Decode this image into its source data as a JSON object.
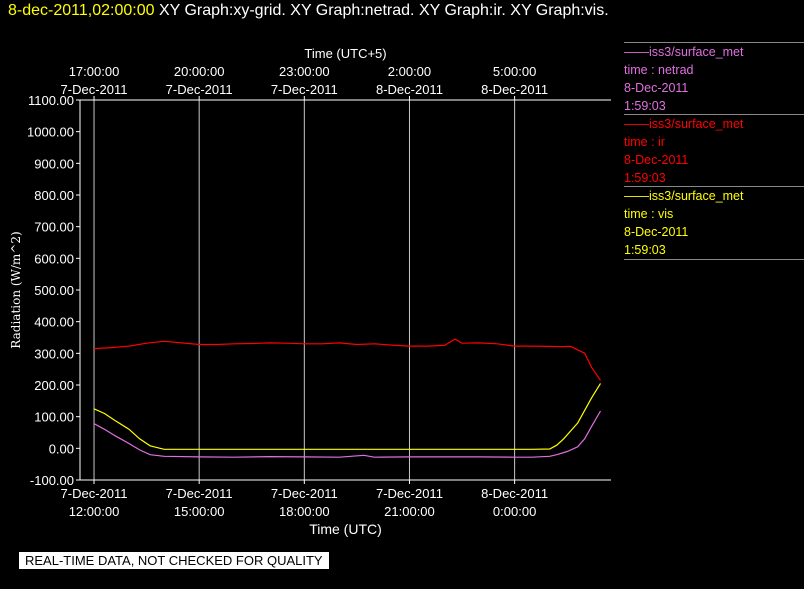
{
  "header": {
    "timestamp": "8-dec-2011,02:00:00",
    "titles": [
      "XY Graph:xy-grid.",
      "XY Graph:netrad.",
      "XY Graph:ir.",
      "XY Graph:vis."
    ]
  },
  "colors": {
    "netrad": "#e070e0",
    "ir": "#ff0000",
    "vis": "#ffff00",
    "grid": "#c8c8c8",
    "axis": "#ffffff"
  },
  "legend": [
    {
      "key": "netrad",
      "name": "——iss3/surface_met",
      "line2": "time : netrad",
      "line3": "8-Dec-2011",
      "line4": "1:59:03"
    },
    {
      "key": "ir",
      "name": "——iss3/surface_met",
      "line2": "time : ir",
      "line3": "8-Dec-2011",
      "line4": "1:59:03"
    },
    {
      "key": "vis",
      "name": "——iss3/surface_met",
      "line2": "time : vis",
      "line3": "8-Dec-2011",
      "line4": "1:59:03"
    }
  ],
  "banner": "REAL-TIME DATA, NOT CHECKED FOR QUALITY",
  "chart_data": {
    "type": "line",
    "ylabel": "Radiation (W/m^2)",
    "xlabel": "Time (UTC)",
    "xlabel_top": "Time (UTC+5)",
    "ylim": [
      -100,
      1100
    ],
    "yticks": [
      "-100.00",
      "0.00",
      "100.00",
      "200.00",
      "300.00",
      "400.00",
      "500.00",
      "600.00",
      "700.00",
      "800.00",
      "900.00",
      "1000.00",
      "1100.00"
    ],
    "xlim": [
      10.6,
      25.75
    ],
    "xticks_bottom": [
      {
        "x": 11,
        "l1": "7-Dec-2011",
        "l2": "12:00:00"
      },
      {
        "x": 14,
        "l1": "7-Dec-2011",
        "l2": "15:00:00"
      },
      {
        "x": 17,
        "l1": "7-Dec-2011",
        "l2": "18:00:00"
      },
      {
        "x": 20,
        "l1": "7-Dec-2011",
        "l2": "21:00:00"
      },
      {
        "x": 23,
        "l1": "8-Dec-2011",
        "l2": "0:00:00"
      }
    ],
    "xticks_top": [
      {
        "x": 11,
        "l1": "17:00:00",
        "l2": "7-Dec-2011"
      },
      {
        "x": 14,
        "l1": "20:00:00",
        "l2": "7-Dec-2011"
      },
      {
        "x": 17,
        "l1": "23:00:00",
        "l2": "7-Dec-2011"
      },
      {
        "x": 20,
        "l1": "2:00:00",
        "l2": "8-Dec-2011"
      },
      {
        "x": 23,
        "l1": "5:00:00",
        "l2": "8-Dec-2011"
      }
    ],
    "grid": true,
    "series": [
      {
        "key": "ir",
        "x": [
          11,
          11.5,
          12,
          12.5,
          13,
          13.5,
          14,
          14.5,
          15,
          15.5,
          16,
          16.5,
          17,
          17.5,
          18,
          18.5,
          19,
          19.5,
          20,
          20.5,
          21,
          21.3,
          21.5,
          22,
          22.5,
          23,
          23.5,
          24,
          24.3,
          24.6,
          25,
          25.2,
          25.45
        ],
        "y": [
          315,
          318,
          323,
          332,
          338,
          333,
          328,
          328,
          330,
          331,
          333,
          332,
          330,
          330,
          333,
          328,
          330,
          326,
          323,
          323,
          325,
          345,
          332,
          333,
          330,
          323,
          323,
          322,
          321,
          322,
          300,
          255,
          215
        ]
      },
      {
        "key": "vis",
        "x": [
          11,
          11.3,
          11.6,
          12,
          12.3,
          12.6,
          13,
          14,
          15,
          16,
          17,
          18,
          19,
          20,
          21,
          22,
          23,
          23.5,
          24,
          24.2,
          24.4,
          24.6,
          24.8,
          25,
          25.2,
          25.45
        ],
        "y": [
          125,
          110,
          88,
          60,
          30,
          8,
          -3,
          -3,
          -3,
          -3,
          -3,
          -3,
          -3,
          -3,
          -3,
          -3,
          -3,
          -3,
          -2,
          10,
          30,
          55,
          80,
          120,
          160,
          205
        ]
      },
      {
        "key": "netrad",
        "x": [
          11,
          11.3,
          11.6,
          12,
          12.3,
          12.6,
          13,
          14,
          15,
          16,
          17,
          18,
          18.7,
          19,
          20,
          21,
          22,
          23,
          23.5,
          24,
          24.2,
          24.5,
          24.8,
          25,
          25.2,
          25.45
        ],
        "y": [
          78,
          60,
          40,
          15,
          -5,
          -20,
          -25,
          -27,
          -28,
          -26,
          -27,
          -28,
          -22,
          -28,
          -27,
          -27,
          -27,
          -28,
          -28,
          -25,
          -20,
          -10,
          5,
          30,
          70,
          118
        ]
      }
    ]
  }
}
